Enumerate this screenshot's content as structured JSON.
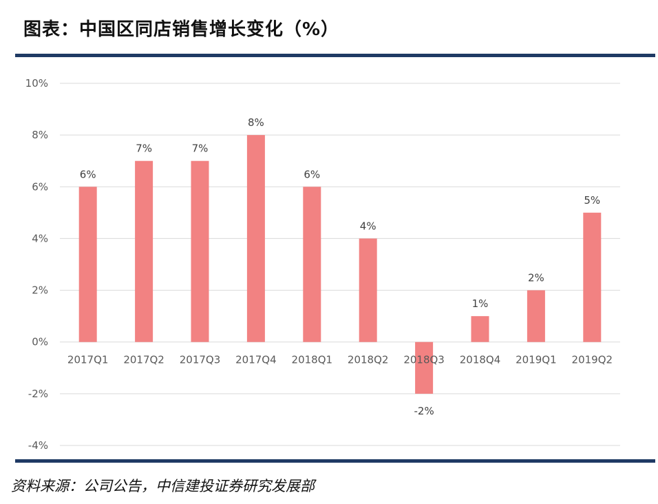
{
  "header": {
    "title": "图表：中国区同店销售增长变化（%）"
  },
  "footer": {
    "source": "资料来源：公司公告，中信建投证券研究发展部"
  },
  "colors": {
    "bar": "#f28282",
    "gridline": "#d9d9d9",
    "rule": "#1f3a64"
  },
  "chart_data": {
    "type": "bar",
    "categories": [
      "2017Q1",
      "2017Q2",
      "2017Q3",
      "2017Q4",
      "2018Q1",
      "2018Q2",
      "2018Q3",
      "2018Q4",
      "2019Q1",
      "2019Q2"
    ],
    "values": [
      6,
      7,
      7,
      8,
      6,
      4,
      -2,
      1,
      2,
      5
    ],
    "data_labels": [
      "6%",
      "7%",
      "7%",
      "8%",
      "6%",
      "4%",
      "-2%",
      "1%",
      "2%",
      "5%"
    ],
    "y_ticks": [
      10,
      8,
      6,
      4,
      2,
      0,
      -2,
      -4
    ],
    "y_tick_labels": [
      "10%",
      "8%",
      "6%",
      "4%",
      "2%",
      "0%",
      "-2%",
      "-4%"
    ],
    "ylim": [
      -4,
      10
    ],
    "grid": true,
    "legend": "none"
  }
}
